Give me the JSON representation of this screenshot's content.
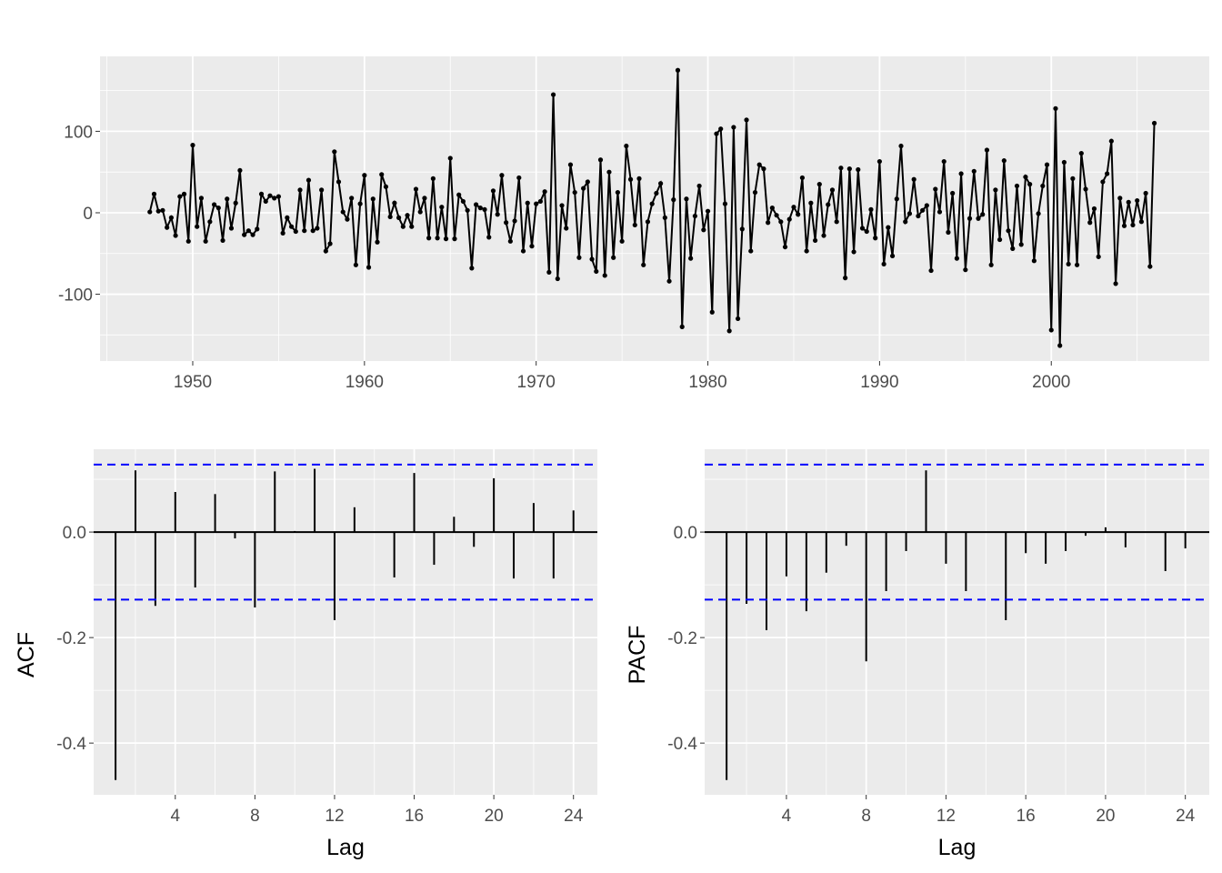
{
  "chart_data": [
    {
      "type": "line",
      "title": "",
      "xlabel": "",
      "ylabel": "",
      "start": 1947.5,
      "frequency": 4,
      "xlim": [
        1944.6,
        2009.2
      ],
      "ylim": [
        -182,
        192
      ],
      "xticks": [
        "1950",
        "1960",
        "1970",
        "1980",
        "1990",
        "2000"
      ],
      "yticks": [
        "-100",
        "0",
        "100"
      ],
      "grid": true,
      "values": [
        1,
        23,
        2,
        3,
        -18,
        -6,
        -28,
        20,
        23,
        -35,
        83,
        -17,
        18,
        -35,
        -11,
        10,
        6,
        -34,
        17,
        -19,
        12,
        52,
        -27,
        -22,
        -27,
        -20,
        23,
        14,
        21,
        18,
        20,
        -25,
        -6,
        -17,
        -23,
        28,
        -22,
        40,
        -22,
        -19,
        28,
        -47,
        -38,
        75,
        38,
        1,
        -8,
        18,
        -64,
        11,
        46,
        -67,
        17,
        -36,
        47,
        32,
        -5,
        12,
        -6,
        -17,
        -3,
        -17,
        29,
        1,
        18,
        -31,
        42,
        -31,
        7,
        -32,
        67,
        -32,
        22,
        14,
        3,
        -68,
        10,
        6,
        4,
        -30,
        27,
        -2,
        46,
        -12,
        -35,
        -10,
        43,
        -47,
        12,
        -41,
        11,
        14,
        26,
        -73,
        145,
        -81,
        9,
        -19,
        59,
        25,
        -55,
        30,
        38,
        -57,
        -72,
        65,
        -77,
        50,
        -55,
        25,
        -35,
        82,
        41,
        -15,
        42,
        -64,
        -11,
        11,
        24,
        36,
        -6,
        -84,
        16,
        175,
        -140,
        17,
        -56,
        -4,
        33,
        -21,
        2,
        -122,
        97,
        103,
        11,
        -145,
        105,
        -130,
        -20,
        114,
        -47,
        25,
        59,
        54,
        -12,
        6,
        -3,
        -11,
        -42,
        -8,
        7,
        -2,
        43,
        -47,
        12,
        -34,
        35,
        -28,
        10,
        28,
        -11,
        55,
        -80,
        54,
        -48,
        53,
        -19,
        -23,
        4,
        -31,
        63,
        -63,
        -18,
        -53,
        17,
        82,
        -11,
        -1,
        41,
        -4,
        3,
        9,
        -71,
        29,
        1,
        63,
        -24,
        24,
        -56,
        48,
        -70,
        -7,
        51,
        -7,
        -2,
        77,
        -64,
        28,
        -33,
        64,
        -22,
        -44,
        33,
        -39,
        44,
        35,
        -59,
        -1,
        33,
        59,
        -144,
        128,
        -163,
        62,
        -63,
        42,
        -64,
        73,
        29,
        -12,
        5,
        -54,
        38,
        48,
        88,
        -87,
        18,
        -16,
        13,
        -15,
        15,
        -11,
        24,
        -66,
        110
      ]
    },
    {
      "type": "bar",
      "xlabel": "Lag",
      "ylabel": "ACF",
      "lags": [
        1,
        2,
        3,
        4,
        5,
        6,
        7,
        8,
        9,
        10,
        11,
        12,
        13,
        14,
        15,
        16,
        17,
        18,
        19,
        20,
        21,
        22,
        23,
        24
      ],
      "values": [
        -0.47,
        0.117,
        -0.14,
        0.076,
        -0.105,
        0.072,
        -0.012,
        -0.143,
        0.115,
        0.002,
        0.12,
        -0.167,
        0.047,
        0.001,
        -0.086,
        0.112,
        -0.062,
        0.029,
        -0.028,
        0.102,
        -0.088,
        0.055,
        -0.088,
        0.041
      ],
      "ci": 0.128,
      "xlim": [
        -0.1,
        25.2
      ],
      "ylim": [
        -0.498,
        0.157
      ],
      "xticks": [
        "4",
        "8",
        "12",
        "16",
        "20",
        "24"
      ],
      "yticks": [
        "-0.4",
        "-0.2",
        "0.0"
      ],
      "ci_color": "#0000ff"
    },
    {
      "type": "bar",
      "xlabel": "Lag",
      "ylabel": "PACF",
      "lags": [
        1,
        2,
        3,
        4,
        5,
        6,
        7,
        8,
        9,
        10,
        11,
        12,
        13,
        14,
        15,
        16,
        17,
        18,
        19,
        20,
        21,
        22,
        23,
        24
      ],
      "values": [
        -0.47,
        -0.136,
        -0.186,
        -0.084,
        -0.15,
        -0.077,
        -0.026,
        -0.245,
        -0.112,
        -0.036,
        0.117,
        -0.06,
        -0.112,
        0.001,
        -0.167,
        -0.04,
        -0.06,
        -0.036,
        -0.007,
        0.009,
        -0.029,
        0.001,
        -0.074,
        -0.031
      ],
      "ci": 0.128,
      "xlim": [
        -0.1,
        25.2
      ],
      "ylim": [
        -0.498,
        0.157
      ],
      "xticks": [
        "4",
        "8",
        "12",
        "16",
        "20",
        "24"
      ],
      "yticks": [
        "-0.4",
        "-0.2",
        "0.0"
      ],
      "ci_color": "#0000ff"
    }
  ]
}
